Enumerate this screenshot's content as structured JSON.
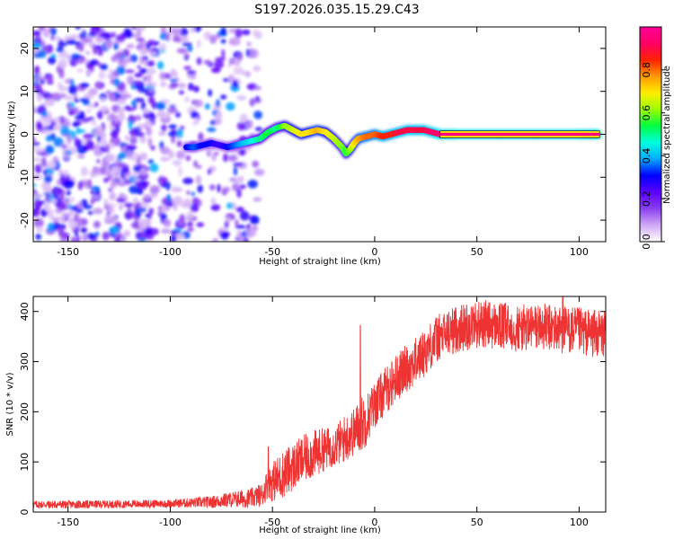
{
  "title": "S197.2026.035.15.29.C43",
  "chart_data": [
    {
      "type": "heatmap",
      "title": "S197.2026.035.15.29.C43",
      "xlabel": "Height of straight line (km)",
      "ylabel": "Frequency (Hz)",
      "xlim": [
        -167,
        113
      ],
      "ylim": [
        -25,
        25
      ],
      "xticks": [
        -150,
        -100,
        -50,
        0,
        50,
        100
      ],
      "yticks": [
        -20,
        -10,
        0,
        10,
        20
      ],
      "colorbar": {
        "label": "Normalized spectral amplitude",
        "range": [
          0,
          1
        ],
        "ticks": [
          "0.0",
          "0.2",
          "0.4",
          "0.6",
          "0.8"
        ],
        "colors": [
          "#ffffff",
          "#cfa8f5",
          "#8a3ff0",
          "#5a00ff",
          "#0000ff",
          "#00aaff",
          "#00ffdd",
          "#00ff44",
          "#99ff00",
          "#ffee00",
          "#ff9900",
          "#ff2200",
          "#ff0066",
          "#ff0099"
        ]
      },
      "ridge": {
        "x": [
          -92,
          -88,
          -84,
          -80,
          -76,
          -72,
          -68,
          -64,
          -60,
          -56,
          -52,
          -48,
          -44,
          -40,
          -36,
          -32,
          -28,
          -24,
          -20,
          -16,
          -14,
          -12,
          -10,
          -8,
          -4,
          0,
          4,
          8,
          12,
          16,
          20,
          24,
          28,
          32,
          40,
          60,
          80,
          100,
          110
        ],
        "y": [
          -3,
          -3,
          -2.5,
          -2,
          -2.5,
          -3,
          -2.5,
          -2,
          -1.5,
          -1,
          0.5,
          1.5,
          2,
          1,
          0,
          0.5,
          1,
          0.5,
          -1,
          -3,
          -4.5,
          -3.5,
          -2,
          -1,
          -0.5,
          0,
          -0.5,
          0,
          0.5,
          1,
          1,
          1,
          0.5,
          0,
          0,
          0,
          0,
          0,
          0
        ],
        "amplitude": [
          0.3,
          0.35,
          0.3,
          0.3,
          0.25,
          0.3,
          0.35,
          0.4,
          0.45,
          0.5,
          0.55,
          0.5,
          0.6,
          0.65,
          0.7,
          0.7,
          0.75,
          0.7,
          0.65,
          0.6,
          0.55,
          0.6,
          0.7,
          0.75,
          0.8,
          0.8,
          0.85,
          0.85,
          0.9,
          0.9,
          0.9,
          0.9,
          0.92,
          0.95,
          0.95,
          0.95,
          0.95,
          0.95,
          0.95
        ]
      }
    },
    {
      "type": "line",
      "xlabel": "Height of straight line (km)",
      "ylabel": "SNR (10 * v/v)",
      "xlim": [
        -167,
        113
      ],
      "ylim": [
        0,
        430
      ],
      "xticks": [
        -150,
        -100,
        -50,
        0,
        50,
        100
      ],
      "yticks": [
        0,
        100,
        200,
        300,
        400
      ],
      "series": [
        {
          "name": "SNR",
          "color": "#ee3333",
          "trend_x": [
            -167,
            -150,
            -120,
            -100,
            -80,
            -70,
            -60,
            -55,
            -52,
            -50,
            -45,
            -40,
            -35,
            -30,
            -25,
            -20,
            -15,
            -10,
            -7,
            -5,
            -2,
            0,
            5,
            10,
            15,
            20,
            25,
            30,
            35,
            40,
            45,
            50,
            55,
            60,
            65,
            70,
            80,
            90,
            100,
            110,
            113
          ],
          "trend_y": [
            15,
            15,
            16,
            17,
            20,
            25,
            28,
            35,
            60,
            60,
            75,
            90,
            105,
            115,
            125,
            130,
            145,
            160,
            175,
            180,
            200,
            215,
            240,
            265,
            285,
            300,
            320,
            345,
            355,
            365,
            370,
            375,
            375,
            370,
            370,
            365,
            370,
            365,
            360,
            355,
            355
          ],
          "noise": [
            10,
            10,
            10,
            10,
            15,
            20,
            25,
            30,
            40,
            50,
            60,
            60,
            60,
            60,
            55,
            50,
            60,
            60,
            70,
            70,
            60,
            60,
            60,
            60,
            60,
            60,
            60,
            60,
            60,
            60,
            60,
            60,
            60,
            60,
            60,
            60,
            60,
            60,
            60,
            60,
            60
          ],
          "spikes": [
            {
              "x": -52,
              "y": 130
            },
            {
              "x": -7,
              "y": 372
            },
            {
              "x": 92,
              "y": 428
            }
          ]
        }
      ]
    }
  ]
}
